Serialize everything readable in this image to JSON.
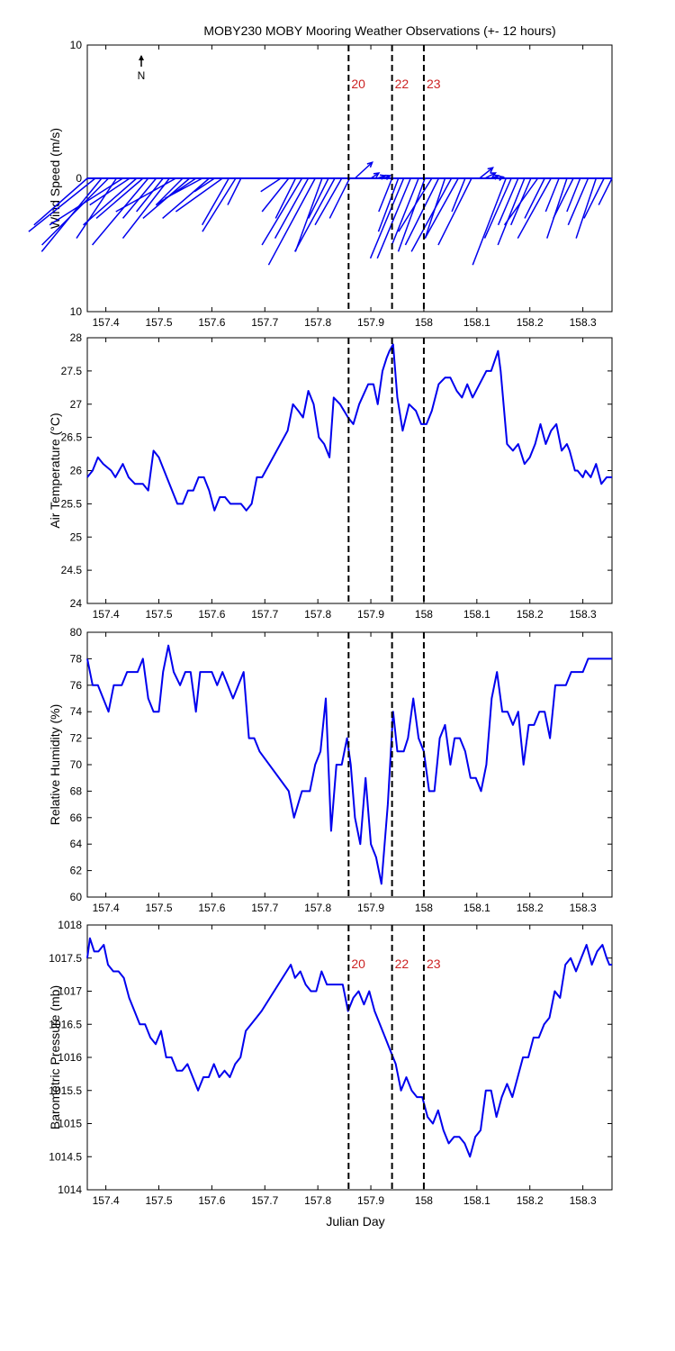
{
  "chart_data": {
    "title": "MOBY230 MOBY Mooring Weather Observations (+- 12 hours)",
    "xlabel": "Julian Day",
    "xlim": [
      157.365,
      158.355
    ],
    "xticks": [
      "157.4",
      "157.5",
      "157.6",
      "157.7",
      "157.8",
      "157.9",
      "158",
      "158.1",
      "158.2",
      "158.3"
    ],
    "markers": [
      {
        "label": "20",
        "x": 157.858
      },
      {
        "label": "22",
        "x": 157.94
      },
      {
        "label": "23",
        "x": 158.0
      }
    ],
    "line_color": "#0000ee",
    "marker_color": "#cc2222",
    "panels": [
      {
        "type": "quiver",
        "ylabel": "Wind Speed (m/s)",
        "ylim": [
          -10,
          10
        ],
        "yticks": [
          "10",
          "0",
          "10"
        ],
        "north_label": "N",
        "show_markers": true,
        "vectors": [
          [
            157.365,
            -4.0,
            -3.5
          ],
          [
            157.38,
            -5.0,
            -4.0
          ],
          [
            157.392,
            -4.5,
            -5.5
          ],
          [
            157.405,
            -5.0,
            -5.0
          ],
          [
            157.42,
            -3.0,
            -4.5
          ],
          [
            157.432,
            -5.5,
            -3.5
          ],
          [
            157.445,
            -3.0,
            -2.0
          ],
          [
            157.458,
            -4.0,
            -3.5
          ],
          [
            157.47,
            -3.5,
            -3.0
          ],
          [
            157.48,
            -4.2,
            -5.0
          ],
          [
            157.495,
            -2.5,
            -3.0
          ],
          [
            157.508,
            -2.0,
            -2.5
          ],
          [
            157.52,
            -3.5,
            -4.5
          ],
          [
            157.532,
            -4.5,
            -2.5
          ],
          [
            157.545,
            -2.0,
            -2.0
          ],
          [
            157.558,
            -3.5,
            -3.0
          ],
          [
            157.57,
            -3.0,
            -2.0
          ],
          [
            157.582,
            -2.8,
            -1.5
          ],
          [
            157.595,
            -3.5,
            -3.0
          ],
          [
            157.605,
            -1.5,
            -1.0
          ],
          [
            157.62,
            -3.5,
            -2.5
          ],
          [
            157.632,
            -2.0,
            -3.5
          ],
          [
            157.645,
            -2.5,
            -4.0
          ],
          [
            157.655,
            -1.0,
            -2.0
          ],
          [
            157.73,
            -1.5,
            -1.0
          ],
          [
            157.745,
            -2.0,
            -2.5
          ],
          [
            157.758,
            -1.5,
            -3.0
          ],
          [
            157.77,
            -3.0,
            -5.0
          ],
          [
            157.782,
            -2.5,
            -4.5
          ],
          [
            157.795,
            -3.5,
            -6.5
          ],
          [
            157.808,
            -2.0,
            -5.5
          ],
          [
            157.82,
            -1.5,
            -3.0
          ],
          [
            157.832,
            -3.0,
            -5.5
          ],
          [
            157.845,
            -2.0,
            -3.5
          ],
          [
            157.86,
            -1.5,
            -3.0
          ],
          [
            157.87,
            1.3,
            1.2
          ],
          [
            157.9,
            0.6,
            0.4
          ],
          [
            157.912,
            0.6,
            0.2
          ],
          [
            157.924,
            0.5,
            0.2
          ],
          [
            157.94,
            -1.0,
            -2.5
          ],
          [
            157.952,
            -1.5,
            -4.0
          ],
          [
            157.962,
            -2.5,
            -6.0
          ],
          [
            157.975,
            -2.5,
            -6.0
          ],
          [
            157.99,
            -2.0,
            -5.0
          ],
          [
            158.002,
            -2.0,
            -5.5
          ],
          [
            158.015,
            -2.5,
            -4.0
          ],
          [
            158.028,
            -2.5,
            -5.0
          ],
          [
            158.04,
            -1.5,
            -4.5
          ],
          [
            158.052,
            -3.0,
            -5.5
          ],
          [
            158.065,
            -2.5,
            -4.5
          ],
          [
            158.078,
            -1.0,
            -2.5
          ],
          [
            158.09,
            -2.5,
            -5.0
          ],
          [
            158.105,
            1.0,
            0.8
          ],
          [
            158.115,
            0.8,
            0.4
          ],
          [
            158.126,
            0.6,
            0.2
          ],
          [
            158.14,
            0.4,
            0.1
          ],
          [
            158.155,
            -2.5,
            -6.5
          ],
          [
            158.165,
            -2.0,
            -4.5
          ],
          [
            158.178,
            -1.5,
            -3.5
          ],
          [
            158.19,
            -2.0,
            -5.0
          ],
          [
            158.202,
            -1.5,
            -3.5
          ],
          [
            158.215,
            -2.5,
            -3.5
          ],
          [
            158.228,
            -1.5,
            -3.0
          ],
          [
            158.24,
            -2.5,
            -4.5
          ],
          [
            158.255,
            -1.0,
            -2.5
          ],
          [
            158.27,
            -1.5,
            -4.5
          ],
          [
            158.282,
            -1.5,
            -3.0
          ],
          [
            158.295,
            -1.0,
            -2.5
          ],
          [
            158.31,
            -1.5,
            -3.5
          ],
          [
            158.325,
            -1.5,
            -4.5
          ],
          [
            158.34,
            -1.5,
            -3.0
          ],
          [
            158.355,
            -1.0,
            -2.0
          ]
        ]
      },
      {
        "type": "line",
        "ylabel": "Air Temperature (°C)",
        "ylim": [
          24,
          28
        ],
        "yticks": [
          "28",
          "27.5",
          "27",
          "26.5",
          "26",
          "25.5",
          "25",
          "24.5",
          "24"
        ],
        "show_markers": true,
        "x": [
          157.365,
          157.375,
          157.385,
          157.395,
          157.41,
          157.418,
          157.432,
          157.443,
          157.455,
          157.47,
          157.48,
          157.49,
          157.5,
          157.515,
          157.525,
          157.535,
          157.545,
          157.555,
          157.565,
          157.575,
          157.585,
          157.595,
          157.605,
          157.615,
          157.625,
          157.635,
          157.645,
          157.655,
          157.665,
          157.675,
          157.685,
          157.695,
          157.743,
          157.753,
          157.763,
          157.772,
          157.782,
          157.792,
          157.802,
          157.812,
          157.822,
          157.83,
          157.842,
          157.857,
          157.867,
          157.878,
          157.895,
          157.905,
          157.913,
          157.922,
          157.93,
          157.935,
          157.942,
          157.95,
          157.96,
          157.972,
          157.985,
          157.995,
          158.005,
          158.015,
          158.028,
          158.04,
          158.05,
          158.062,
          158.072,
          158.082,
          158.092,
          158.105,
          158.118,
          158.127,
          158.14,
          158.145,
          158.157,
          158.168,
          158.178,
          158.19,
          158.2,
          158.21,
          158.22,
          158.23,
          158.24,
          158.25,
          158.26,
          158.27,
          158.275,
          158.285,
          158.29,
          158.3,
          158.305,
          158.315,
          158.325,
          158.335,
          158.345,
          158.355
        ],
        "y": [
          25.9,
          26.0,
          26.2,
          26.1,
          26.0,
          25.9,
          26.1,
          25.9,
          25.8,
          25.8,
          25.7,
          26.3,
          26.2,
          25.9,
          25.7,
          25.5,
          25.5,
          25.7,
          25.7,
          25.9,
          25.9,
          25.7,
          25.4,
          25.6,
          25.6,
          25.5,
          25.5,
          25.5,
          25.4,
          25.5,
          25.9,
          25.9,
          26.6,
          27.0,
          26.9,
          26.8,
          27.2,
          27.0,
          26.5,
          26.4,
          26.2,
          27.1,
          27.0,
          26.8,
          26.7,
          27.0,
          27.3,
          27.3,
          27.0,
          27.5,
          27.7,
          27.8,
          27.9,
          27.1,
          26.6,
          27.0,
          26.9,
          26.7,
          26.7,
          26.9,
          27.3,
          27.4,
          27.4,
          27.2,
          27.1,
          27.3,
          27.1,
          27.3,
          27.5,
          27.5,
          27.8,
          27.5,
          26.4,
          26.3,
          26.4,
          26.1,
          26.2,
          26.4,
          26.7,
          26.4,
          26.6,
          26.7,
          26.3,
          26.4,
          26.3,
          26.0,
          26.0,
          25.9,
          26.0,
          25.9,
          26.1,
          25.8,
          25.9,
          25.9
        ]
      },
      {
        "type": "line",
        "ylabel": "Relative Humidity (%)",
        "ylim": [
          60,
          80
        ],
        "yticks": [
          "80",
          "78",
          "76",
          "74",
          "72",
          "70",
          "68",
          "66",
          "64",
          "62",
          "60"
        ],
        "show_markers": true,
        "x": [
          157.365,
          157.375,
          157.385,
          157.405,
          157.415,
          157.43,
          157.44,
          157.45,
          157.46,
          157.47,
          157.48,
          157.49,
          157.5,
          157.508,
          157.518,
          157.528,
          157.54,
          157.55,
          157.56,
          157.57,
          157.578,
          157.59,
          157.6,
          157.61,
          157.62,
          157.63,
          157.64,
          157.65,
          157.66,
          157.67,
          157.68,
          157.69,
          157.745,
          157.755,
          157.77,
          157.785,
          157.795,
          157.805,
          157.815,
          157.825,
          157.835,
          157.845,
          157.855,
          157.862,
          157.87,
          157.88,
          157.89,
          157.9,
          157.91,
          157.92,
          157.932,
          157.942,
          157.95,
          157.962,
          157.97,
          157.98,
          157.99,
          158.0,
          158.01,
          158.02,
          158.03,
          158.04,
          158.05,
          158.058,
          158.068,
          158.078,
          158.088,
          158.098,
          158.108,
          158.118,
          158.128,
          158.138,
          158.148,
          158.158,
          158.168,
          158.178,
          158.188,
          158.198,
          158.208,
          158.218,
          158.228,
          158.238,
          158.248,
          158.258,
          158.268,
          158.278,
          158.29,
          158.3,
          158.31,
          158.32,
          158.33,
          158.34,
          158.35,
          158.355
        ],
        "y": [
          78,
          76,
          76,
          74,
          76,
          76,
          77,
          77,
          77,
          78,
          75,
          74,
          74,
          77,
          79,
          77,
          76,
          77,
          77,
          74,
          77,
          77,
          77,
          76,
          77,
          76,
          75,
          76,
          77,
          72,
          72,
          71,
          68,
          66,
          68,
          68,
          70,
          71,
          75,
          65,
          70,
          70,
          72,
          70,
          66,
          64,
          69,
          64,
          63,
          61,
          67,
          74,
          71,
          71,
          72,
          75,
          72,
          71,
          68,
          68,
          72,
          73,
          70,
          72,
          72,
          71,
          69,
          69,
          68,
          70,
          75,
          77,
          74,
          74,
          73,
          74,
          70,
          73,
          73,
          74,
          74,
          72,
          76,
          76,
          76,
          77,
          77,
          77,
          78,
          78,
          78,
          78,
          78,
          78
        ]
      },
      {
        "type": "line",
        "ylabel": "Barometric Pressure (mb)",
        "ylim": [
          1014,
          1018
        ],
        "yticks": [
          "1018",
          "1017.5",
          "1017",
          "1016.5",
          "1016",
          "1015.5",
          "1015",
          "1014.5",
          "1014"
        ],
        "show_markers": true,
        "x": [
          157.365,
          157.37,
          157.378,
          157.386,
          157.396,
          157.404,
          157.414,
          157.424,
          157.434,
          157.444,
          157.454,
          157.464,
          157.474,
          157.484,
          157.494,
          157.504,
          157.514,
          157.524,
          157.534,
          157.544,
          157.554,
          157.564,
          157.574,
          157.584,
          157.594,
          157.604,
          157.614,
          157.624,
          157.634,
          157.644,
          157.654,
          157.664,
          157.674,
          157.684,
          157.694,
          157.749,
          157.757,
          157.767,
          157.777,
          157.787,
          157.797,
          157.807,
          157.817,
          157.827,
          157.837,
          157.847,
          157.857,
          157.867,
          157.877,
          157.887,
          157.897,
          157.907,
          157.917,
          157.927,
          157.937,
          157.947,
          157.957,
          157.967,
          157.977,
          157.987,
          157.997,
          158.007,
          158.017,
          158.027,
          158.037,
          158.047,
          158.057,
          158.067,
          158.077,
          158.087,
          158.097,
          158.107,
          158.117,
          158.127,
          158.137,
          158.147,
          158.157,
          158.167,
          158.177,
          158.187,
          158.197,
          158.207,
          158.217,
          158.227,
          158.237,
          158.247,
          158.257,
          158.267,
          158.277,
          158.287,
          158.297,
          158.307,
          158.317,
          158.327,
          158.337,
          158.345,
          158.35,
          158.355
        ],
        "y": [
          1017.5,
          1017.8,
          1017.6,
          1017.6,
          1017.7,
          1017.4,
          1017.3,
          1017.3,
          1017.2,
          1016.9,
          1016.7,
          1016.5,
          1016.5,
          1016.3,
          1016.2,
          1016.4,
          1016.0,
          1016.0,
          1015.8,
          1015.8,
          1015.9,
          1015.7,
          1015.5,
          1015.7,
          1015.7,
          1015.9,
          1015.7,
          1015.8,
          1015.7,
          1015.9,
          1016.0,
          1016.4,
          1016.5,
          1016.6,
          1016.7,
          1017.4,
          1017.2,
          1017.3,
          1017.1,
          1017.0,
          1017.0,
          1017.3,
          1017.1,
          1017.1,
          1017.1,
          1017.1,
          1016.7,
          1016.9,
          1017.0,
          1016.8,
          1017.0,
          1016.7,
          1016.5,
          1016.3,
          1016.1,
          1015.9,
          1015.5,
          1015.7,
          1015.5,
          1015.4,
          1015.4,
          1015.1,
          1015.0,
          1015.2,
          1014.9,
          1014.7,
          1014.8,
          1014.8,
          1014.7,
          1014.5,
          1014.8,
          1014.9,
          1015.5,
          1015.5,
          1015.1,
          1015.4,
          1015.6,
          1015.4,
          1015.7,
          1016.0,
          1016.0,
          1016.3,
          1016.3,
          1016.5,
          1016.6,
          1017.0,
          1016.9,
          1017.4,
          1017.5,
          1017.3,
          1017.5,
          1017.7,
          1017.4,
          1017.6,
          1017.7,
          1017.5,
          1017.4,
          1017.4
        ]
      }
    ]
  }
}
